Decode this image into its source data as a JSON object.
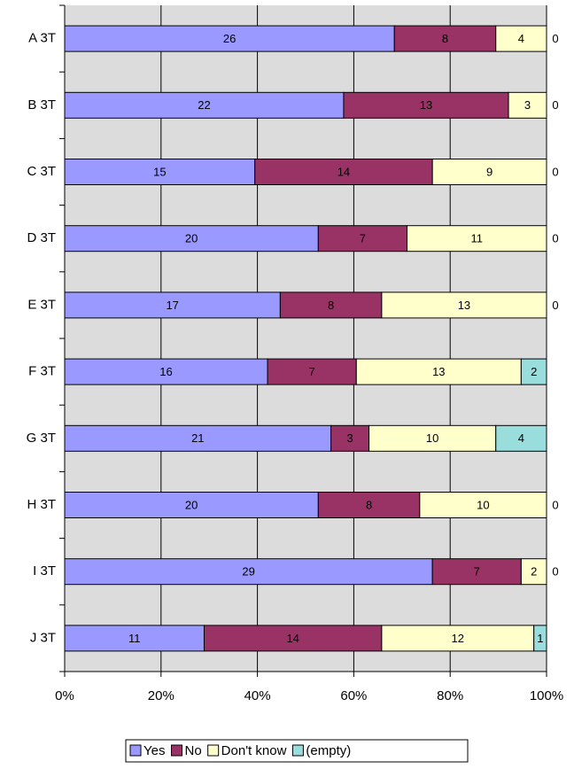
{
  "chart_data": {
    "type": "bar",
    "orientation": "horizontal",
    "stacked": "percent",
    "categories": [
      "A 3T",
      "B 3T",
      "C 3T",
      "D 3T",
      "E 3T",
      "F 3T",
      "G 3T",
      "H 3T",
      "I 3T",
      "J 3T"
    ],
    "series": [
      {
        "name": "Yes",
        "color": "#9999ff",
        "values": [
          26,
          22,
          15,
          20,
          17,
          16,
          21,
          20,
          29,
          11
        ]
      },
      {
        "name": "No",
        "color": "#993366",
        "values": [
          8,
          13,
          14,
          7,
          8,
          7,
          3,
          8,
          7,
          14
        ]
      },
      {
        "name": "Don't know",
        "color": "#ffffcc",
        "values": [
          4,
          3,
          9,
          11,
          13,
          13,
          10,
          10,
          2,
          12
        ]
      },
      {
        "name": "(empty)",
        "color": "#99dddd",
        "values": [
          0,
          0,
          0,
          0,
          0,
          2,
          4,
          0,
          0,
          1
        ]
      }
    ],
    "xlim": [
      0,
      100
    ],
    "xticks": [
      {
        "value": 0,
        "label": "0%"
      },
      {
        "value": 20,
        "label": "20%"
      },
      {
        "value": 40,
        "label": "40%"
      },
      {
        "value": 60,
        "label": "60%"
      },
      {
        "value": 80,
        "label": "80%"
      },
      {
        "value": 100,
        "label": "100%"
      }
    ],
    "grid": true,
    "legend": "bottom"
  }
}
